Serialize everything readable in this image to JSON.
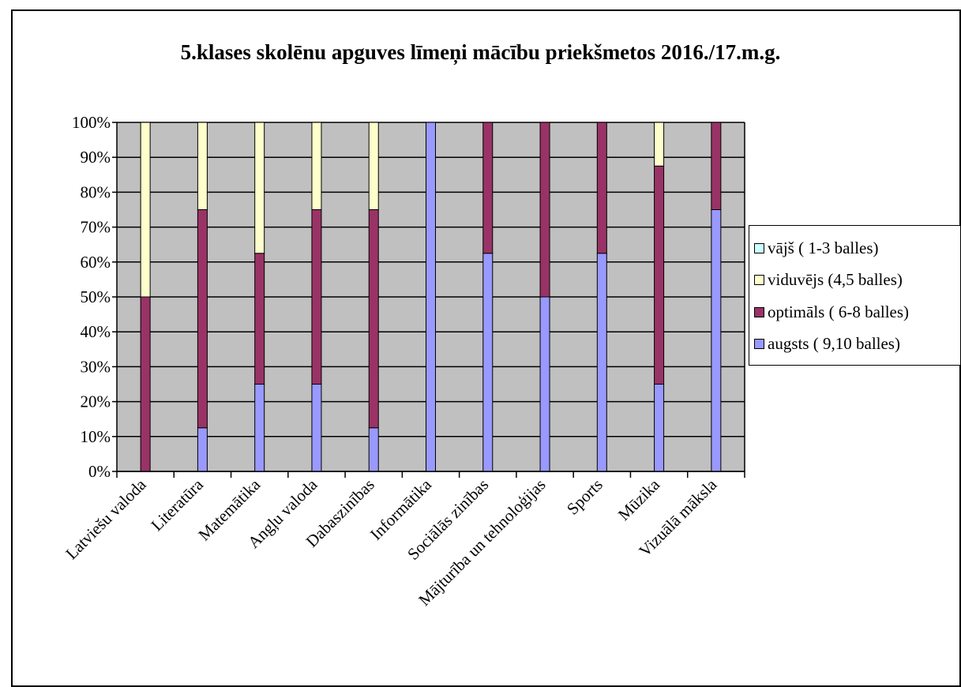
{
  "chart_data": {
    "type": "bar",
    "stacked": "percent",
    "title": "5.klases skolēnu apguves līmeņi mācību priekšmetos 2016./17.m.g.",
    "categories": [
      "Latviešu valoda",
      "Literatūra",
      "Matemātika",
      "Angļu valoda",
      "Dabaszinības",
      "Informātika",
      "Sociālās zinības",
      "Mājturība un tehnoloģijas",
      "Sports",
      "Mūzika",
      "Vizuālā māksla"
    ],
    "series": [
      {
        "name": "augsts ( 9,10 balles)",
        "color": "#9999ff",
        "values": [
          0,
          12.5,
          25,
          25,
          12.5,
          100,
          62.5,
          50,
          62.5,
          25,
          75
        ]
      },
      {
        "name": "optimāls ( 6-8 balles)",
        "color": "#993366",
        "values": [
          50,
          62.5,
          37.5,
          50,
          62.5,
          0,
          37.5,
          50,
          37.5,
          62.5,
          25
        ]
      },
      {
        "name": "viduvējs (4,5 balles)",
        "color": "#ffffcc",
        "values": [
          50,
          25,
          37.5,
          25,
          25,
          0,
          0,
          0,
          0,
          12.5,
          0
        ]
      },
      {
        "name": "vājš ( 1-3 balles)",
        "color": "#ccffff",
        "values": [
          0,
          0,
          0,
          0,
          0,
          0,
          0,
          0,
          0,
          0,
          0
        ]
      }
    ],
    "ylim": [
      0,
      100
    ],
    "yticks": [
      "0%",
      "10%",
      "20%",
      "30%",
      "40%",
      "50%",
      "60%",
      "70%",
      "80%",
      "90%",
      "100%"
    ],
    "grid": true,
    "plot_background": "#c0c0c0",
    "legend_position": "right"
  }
}
